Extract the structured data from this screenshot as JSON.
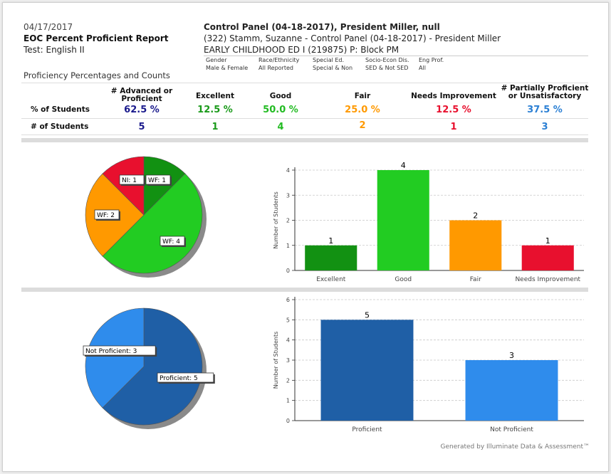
{
  "header": {
    "date": "04/17/2017",
    "report_title": "EOC Percent Proficient Report",
    "test": "Test: English II",
    "control_panel": "Control Panel (04-18-2017), President Miller, null",
    "teacher_line": "(322) Stamm, Suzanne  - Control Panel (04-18-2017) - President Miller",
    "course_line": "EARLY CHILDHOOD ED I (219875) P: Block PM"
  },
  "filters": [
    {
      "label": "Gender",
      "value": "Male & Female"
    },
    {
      "label": "Race/Ethnicity",
      "value": "All Reported"
    },
    {
      "label": "Special Ed.",
      "value": "Special & Non"
    },
    {
      "label": "Socio-Econ Dis.",
      "value": "SED & Not SED"
    },
    {
      "label": "Eng Prof.",
      "value": "All"
    }
  ],
  "summary": {
    "section_title": "Proficiency Percentages and Counts",
    "row_labels": {
      "percent": "% of Students",
      "count": "# of Students"
    },
    "columns": [
      {
        "header": "# Advanced or Proficient",
        "percent": "62.5 %",
        "count": "5",
        "color": "#1a1a8c"
      },
      {
        "header": "Excellent",
        "percent": "12.5 %",
        "count": "1",
        "color": "#1a9a1a"
      },
      {
        "header": "Good",
        "percent": "50.0 %",
        "count": "4",
        "color": "#22bb22"
      },
      {
        "header": "Fair",
        "percent": "25.0 %",
        "count": "2",
        "color": "#ff9900"
      },
      {
        "header": "Needs Improvement",
        "percent": "12.5 %",
        "count": "1",
        "color": "#e8102e"
      },
      {
        "header": "# Partially Proficient or Unsatisfactory",
        "percent": "37.5 %",
        "count": "3",
        "color": "#2a7fd4"
      }
    ]
  },
  "chart_data": [
    {
      "type": "pie",
      "slices": [
        {
          "label": "WF: 1",
          "value": 1,
          "color": "#129112"
        },
        {
          "label": "WF: 4",
          "value": 4,
          "color": "#22cc22"
        },
        {
          "label": "WF: 2",
          "value": 2,
          "color": "#ff9900"
        },
        {
          "label": "NI: 1",
          "value": 1,
          "color": "#e8102e"
        }
      ]
    },
    {
      "type": "bar",
      "categories": [
        "Excellent",
        "Good",
        "Fair",
        "Needs Improvement"
      ],
      "values": [
        1,
        4,
        2,
        1
      ],
      "colors": [
        "#129112",
        "#22cc22",
        "#ff9900",
        "#e8102e"
      ],
      "ylabel": "Number of Students",
      "ylim": [
        0,
        4
      ],
      "yticks": [
        0,
        1,
        2,
        3,
        4
      ],
      "grid": true
    },
    {
      "type": "pie",
      "slices": [
        {
          "label": "Proficient: 5",
          "value": 5,
          "color": "#1f5fa6"
        },
        {
          "label": "Not Proficient: 3",
          "value": 3,
          "color": "#2f8cec"
        }
      ]
    },
    {
      "type": "bar",
      "categories": [
        "Proficient",
        "Not Proficient"
      ],
      "values": [
        5,
        3
      ],
      "colors": [
        "#1f5fa6",
        "#2f8cec"
      ],
      "ylabel": "Number of Students",
      "ylim": [
        0,
        6
      ],
      "yticks": [
        0,
        1,
        2,
        3,
        4,
        5,
        6
      ],
      "grid": true
    }
  ],
  "footer": "Generated by Illuminate Data & Assessment™"
}
